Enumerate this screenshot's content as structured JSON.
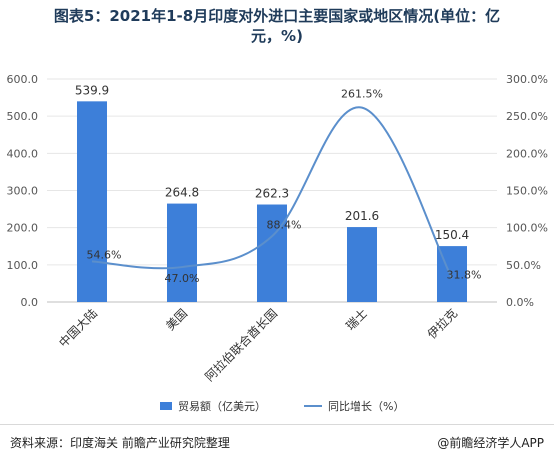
{
  "title_line1": "图表5：2021年1-8月印度对外进口主要国家或地区情况(单位：亿",
  "title_line2": "元，%)",
  "footer": {
    "source": "资料来源：印度海关 前瞻产业研究院整理",
    "brand": "@前瞻经济学人APP"
  },
  "chart_data": {
    "type": "bar",
    "categories": [
      "中国大陆",
      "美国",
      "阿拉伯联合酋长国",
      "瑞士",
      "伊拉克"
    ],
    "series": [
      {
        "name": "贸易额（亿美元）",
        "type": "bar",
        "axis": "left",
        "values": [
          539.9,
          264.8,
          262.3,
          201.6,
          150.4
        ],
        "color": "#3d7fd9"
      },
      {
        "name": "同比增长（%）",
        "type": "line",
        "axis": "right",
        "values": [
          54.6,
          47.0,
          88.4,
          261.5,
          31.8
        ],
        "color": "#5b8fcc"
      }
    ],
    "value_labels_bar": [
      "539.9",
      "264.8",
      "262.3",
      "201.6",
      "150.4"
    ],
    "value_labels_line": [
      "54.6%",
      "47.0%",
      "88.4%",
      "261.5%",
      "31.8%"
    ],
    "left_axis": {
      "ylim": [
        0,
        600
      ],
      "ticks": [
        "0.0",
        "100.0",
        "200.0",
        "300.0",
        "400.0",
        "500.0",
        "600.0"
      ]
    },
    "right_axis": {
      "ylim": [
        0,
        300
      ],
      "ticks": [
        "0.0%",
        "50.0%",
        "100.0%",
        "150.0%",
        "200.0%",
        "250.0%",
        "300.0%"
      ]
    },
    "legend_position": "bottom",
    "grid": true
  }
}
